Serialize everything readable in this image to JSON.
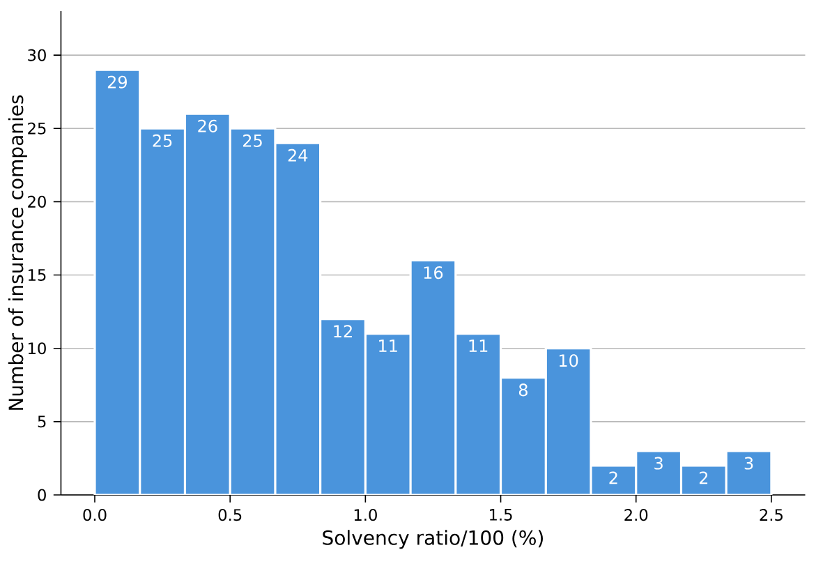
{
  "chart_data": {
    "type": "histogram",
    "xlabel": "Solvency ratio/100 (%)",
    "ylabel": "Number of insurance companies",
    "bins": [
      0,
      0.1667,
      0.3333,
      0.5,
      0.6667,
      0.8333,
      1,
      1.1667,
      1.3333,
      1.5,
      1.6667,
      1.8333,
      2,
      2.1667,
      2.3333,
      2.5
    ],
    "values": [
      29,
      25,
      26,
      25,
      24,
      12,
      11,
      16,
      11,
      8,
      10,
      2,
      3,
      2,
      3
    ],
    "color": "#4a94dc",
    "data_labels": true,
    "grid": "y",
    "xlim": [
      -0.125,
      2.625
    ],
    "ylim": [
      0,
      33
    ],
    "xticks": [
      {
        "value": 0,
        "label": "0.0"
      },
      {
        "value": 0.5,
        "label": "0.5"
      },
      {
        "value": 1,
        "label": "1.0"
      },
      {
        "value": 1.5,
        "label": "1.5"
      },
      {
        "value": 2,
        "label": "2.0"
      },
      {
        "value": 2.5,
        "label": "2.5"
      }
    ],
    "yticks": [
      0,
      5,
      10,
      15,
      20,
      25,
      30
    ]
  }
}
